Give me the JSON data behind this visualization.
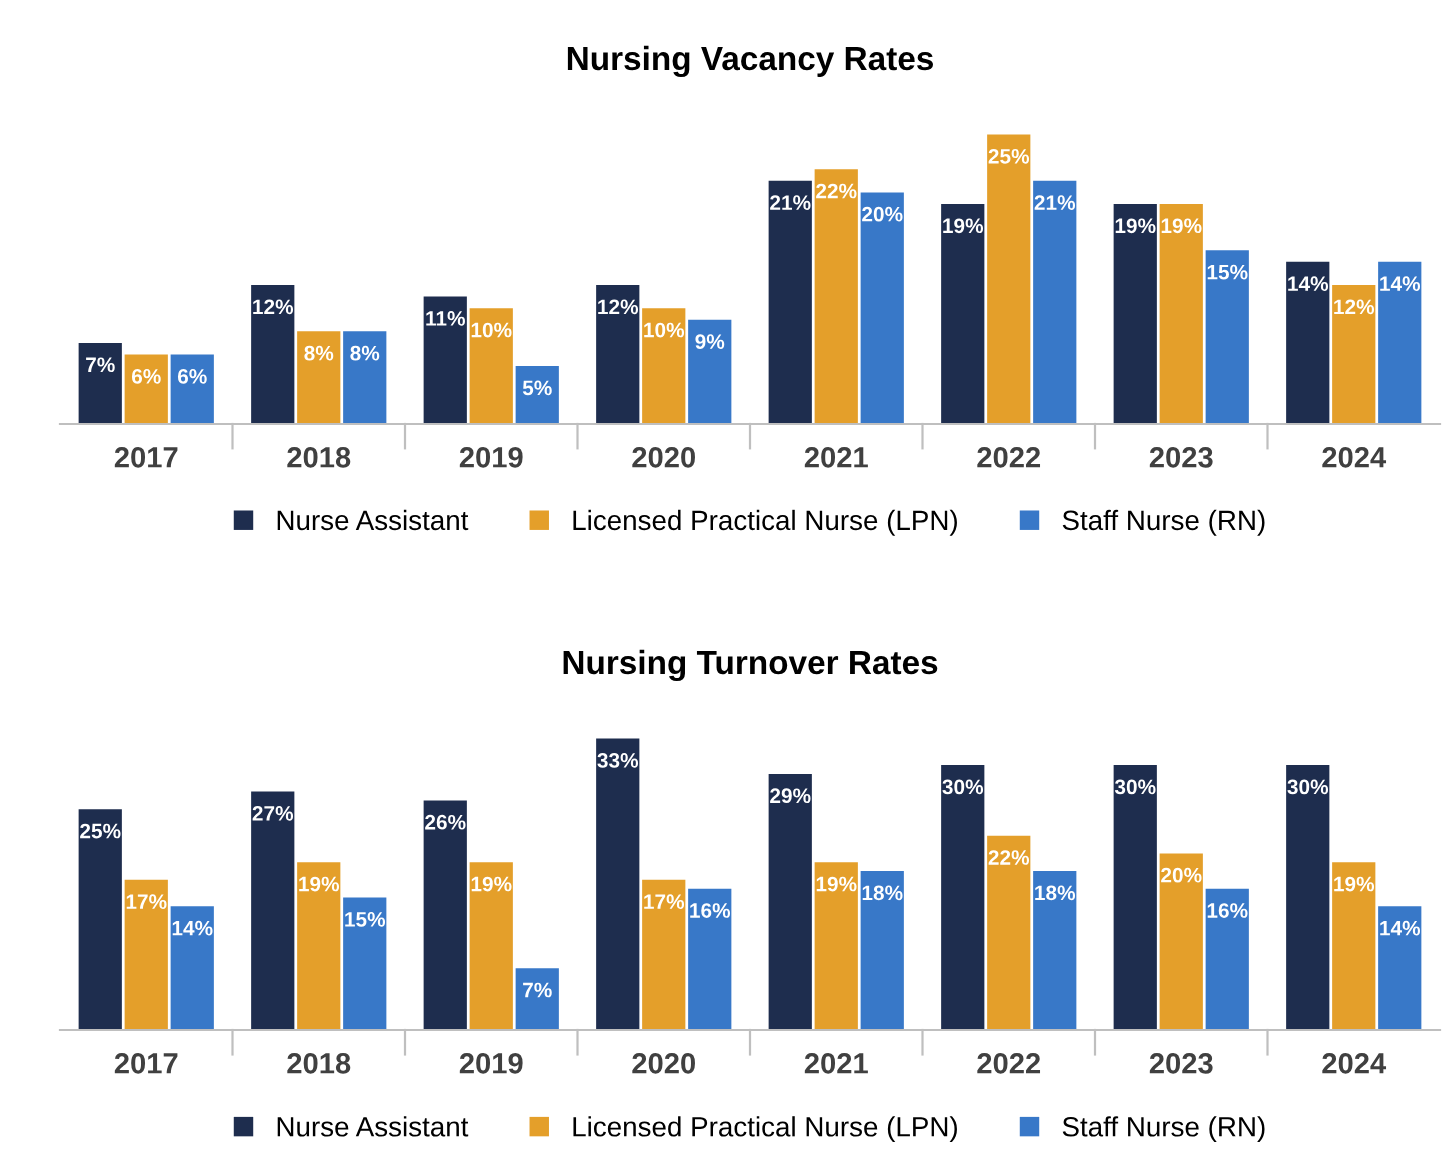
{
  "chart_data": [
    {
      "type": "bar",
      "title": "Nursing Vacancy Rates",
      "categories": [
        "2017",
        "2018",
        "2019",
        "2020",
        "2021",
        "2022",
        "2023",
        "2024"
      ],
      "data_labels": true,
      "legend": "bottom",
      "grid": false,
      "tick_labels": "x",
      "series": [
        {
          "name": "Nurse Assistant",
          "color": "#1e2d4e",
          "values": [
            7,
            12,
            11,
            12,
            21,
            19,
            19,
            14
          ],
          "value_labels": [
            "7%",
            "12%",
            "11%",
            "12%",
            "21%",
            "19%",
            "19%",
            "14%"
          ]
        },
        {
          "name": "Licensed Practical Nurse (LPN)",
          "color": "#e49f2a",
          "values": [
            6,
            8,
            10,
            10,
            22,
            25,
            19,
            12
          ],
          "value_labels": [
            "6%",
            "8%",
            "10%",
            "10%",
            "22%",
            "25%",
            "19%",
            "12%"
          ]
        },
        {
          "name": "Staff Nurse (RN)",
          "color": "#3878c8",
          "values": [
            6,
            8,
            5,
            9,
            20,
            21,
            15,
            14
          ],
          "value_labels": [
            "6%",
            "8%",
            "5%",
            "9%",
            "20%",
            "21%",
            "15%",
            "14%"
          ]
        }
      ]
    },
    {
      "type": "bar",
      "title": "Nursing Turnover Rates",
      "categories": [
        "2017",
        "2018",
        "2019",
        "2020",
        "2021",
        "2022",
        "2023",
        "2024"
      ],
      "data_labels": true,
      "legend": "bottom",
      "grid": false,
      "tick_labels": "x",
      "series": [
        {
          "name": "Nurse Assistant",
          "color": "#1e2d4e",
          "values": [
            25,
            27,
            26,
            33,
            29,
            30,
            30,
            30
          ],
          "value_labels": [
            "25%",
            "27%",
            "26%",
            "33%",
            "29%",
            "30%",
            "30%",
            "30%"
          ]
        },
        {
          "name": "Licensed Practical Nurse (LPN)",
          "color": "#e49f2a",
          "values": [
            17,
            19,
            19,
            17,
            19,
            22,
            20,
            19
          ],
          "value_labels": [
            "17%",
            "19%",
            "19%",
            "17%",
            "19%",
            "22%",
            "20%",
            "19%"
          ]
        },
        {
          "name": "Staff Nurse (RN)",
          "color": "#3878c8",
          "values": [
            14,
            15,
            7,
            16,
            18,
            18,
            16,
            14
          ],
          "value_labels": [
            "14%",
            "15%",
            "7%",
            "16%",
            "18%",
            "18%",
            "16%",
            "14%"
          ]
        }
      ]
    }
  ]
}
